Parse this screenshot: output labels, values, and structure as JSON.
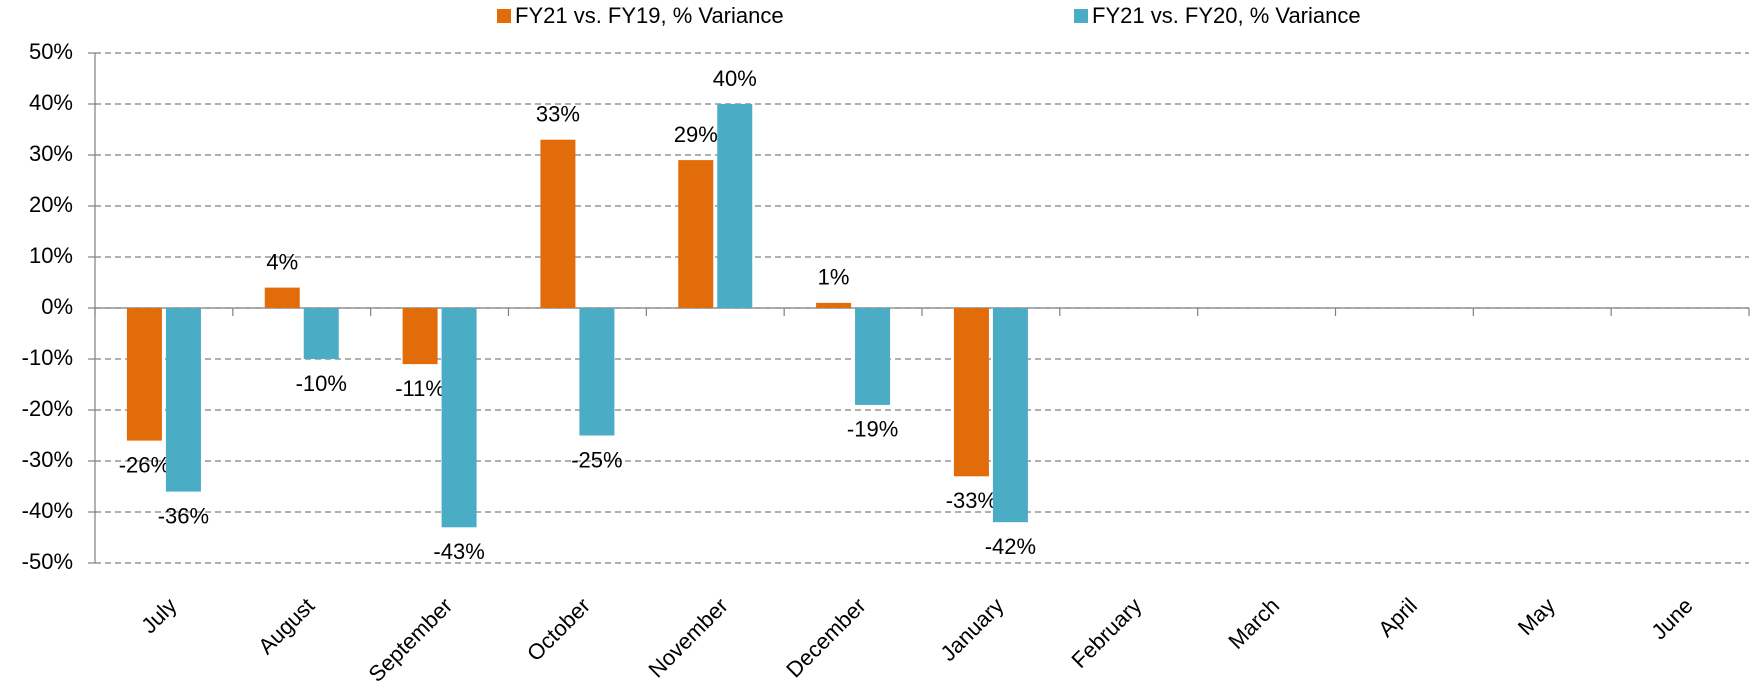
{
  "chart_data": {
    "type": "bar",
    "categories": [
      "July",
      "August",
      "September",
      "October",
      "November",
      "December",
      "January",
      "February",
      "March",
      "April",
      "May",
      "June"
    ],
    "series": [
      {
        "name": "FY21 vs. FY19, % Variance",
        "color": "#e36c0a",
        "values": [
          -26,
          4,
          -11,
          33,
          29,
          1,
          -33,
          null,
          null,
          null,
          null,
          null
        ],
        "value_labels": [
          "-26%",
          "4%",
          "-11%",
          "33%",
          "29%",
          "1%",
          "-33%",
          null,
          null,
          null,
          null,
          null
        ]
      },
      {
        "name": "FY21 vs. FY20, % Variance",
        "color": "#4bacc6",
        "values": [
          -36,
          -10,
          -43,
          -25,
          40,
          -19,
          -42,
          null,
          null,
          null,
          null,
          null
        ],
        "value_labels": [
          "-36%",
          "-10%",
          "-43%",
          "-25%",
          "40%",
          "-19%",
          "-42%",
          null,
          null,
          null,
          null,
          null
        ]
      }
    ],
    "ylim": [
      -50,
      50
    ],
    "yticks": [
      {
        "value": -50,
        "label": "-50%"
      },
      {
        "value": -40,
        "label": "-40%"
      },
      {
        "value": -30,
        "label": "-30%"
      },
      {
        "value": -20,
        "label": "-20%"
      },
      {
        "value": -10,
        "label": "-10%"
      },
      {
        "value": 0,
        "label": "0%"
      },
      {
        "value": 10,
        "label": "10%"
      },
      {
        "value": 20,
        "label": "20%"
      },
      {
        "value": 30,
        "label": "30%"
      },
      {
        "value": 40,
        "label": "40%"
      },
      {
        "value": 50,
        "label": "50%"
      }
    ],
    "grid": true,
    "legend": "top"
  }
}
